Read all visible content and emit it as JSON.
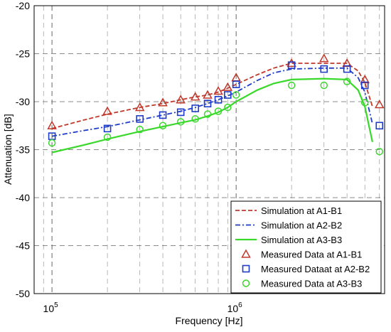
{
  "chart_data": {
    "type": "line",
    "xlabel": "Frequency [Hz]",
    "ylabel": "Attenuation [dB]",
    "x_scale": "log",
    "xlim": [
      80000,
      6400000
    ],
    "ylim": [
      -50,
      -20
    ],
    "grid": true,
    "legend_position": "bottom-right",
    "x_ticks": [
      {
        "value": 100000,
        "base": "10",
        "exp": "5"
      },
      {
        "value": 1000000,
        "base": "10",
        "exp": "6"
      }
    ],
    "y_ticks": [
      "-20",
      "-25",
      "-30",
      "-35",
      "-40",
      "-45",
      "-50"
    ],
    "series": [
      {
        "name": "Simulation at A1-B1",
        "kind": "line",
        "style": "dashed",
        "color": "#c0392b",
        "x": [
          100000,
          150000,
          200000,
          300000,
          400000,
          500000,
          600000,
          700000,
          800000,
          900000,
          1000000,
          1300000,
          1600000,
          2000000,
          3000000,
          4000000,
          4600000,
          5000000,
          5500000
        ],
        "y": [
          -32.8,
          -31.9,
          -31.3,
          -30.6,
          -30.2,
          -29.8,
          -29.5,
          -29.3,
          -29.0,
          -28.6,
          -28.2,
          -27.2,
          -26.5,
          -26.0,
          -26.0,
          -26.0,
          -26.8,
          -28.0,
          -30.5
        ]
      },
      {
        "name": "Simulation at A2-B2",
        "kind": "line",
        "style": "dashdot",
        "color": "#1f3cc8",
        "x": [
          100000,
          150000,
          200000,
          300000,
          400000,
          500000,
          600000,
          700000,
          800000,
          900000,
          1000000,
          1300000,
          1600000,
          2000000,
          3000000,
          4000000,
          4600000,
          5000000,
          5500000
        ],
        "y": [
          -33.6,
          -33.0,
          -32.6,
          -31.9,
          -31.4,
          -31.0,
          -30.6,
          -30.2,
          -29.8,
          -29.4,
          -29.0,
          -27.8,
          -27.0,
          -26.6,
          -26.5,
          -26.5,
          -27.5,
          -29.0,
          -32.3
        ]
      },
      {
        "name": "Simulation at A3-B3",
        "kind": "line",
        "style": "solid",
        "color": "#39d82b",
        "x": [
          100000,
          150000,
          200000,
          300000,
          400000,
          500000,
          600000,
          700000,
          800000,
          900000,
          1000000,
          1300000,
          1600000,
          2000000,
          3000000,
          4000000,
          4600000,
          5000000,
          5500000
        ],
        "y": [
          -35.3,
          -34.5,
          -33.9,
          -33.1,
          -32.6,
          -32.2,
          -31.9,
          -31.5,
          -31.1,
          -30.6,
          -30.0,
          -28.8,
          -28.1,
          -27.7,
          -27.6,
          -27.7,
          -28.8,
          -30.5,
          -34.2
        ]
      },
      {
        "name": "Measured Data at A1-B1",
        "kind": "marker",
        "marker": "triangle",
        "color": "#c0392b",
        "x": [
          100000,
          200000,
          300000,
          400000,
          500000,
          600000,
          700000,
          800000,
          900000,
          1000000,
          2000000,
          3000000,
          4000000,
          5000000,
          6000000
        ],
        "y": [
          -32.5,
          -31.0,
          -30.6,
          -30.1,
          -29.8,
          -29.5,
          -29.3,
          -28.9,
          -28.5,
          -27.5,
          -26.0,
          -25.5,
          -26.0,
          -27.7,
          -30.3
        ]
      },
      {
        "name": "Measured Dataat at A2-B2",
        "kind": "marker",
        "marker": "square",
        "color": "#1f3cc8",
        "x": [
          100000,
          200000,
          300000,
          400000,
          500000,
          600000,
          700000,
          800000,
          900000,
          1000000,
          2000000,
          3000000,
          4000000,
          5000000,
          6000000
        ],
        "y": [
          -33.6,
          -32.8,
          -31.8,
          -31.4,
          -31.1,
          -30.7,
          -30.2,
          -29.8,
          -29.3,
          -28.2,
          -26.2,
          -26.6,
          -26.6,
          -28.3,
          -32.5
        ]
      },
      {
        "name": "Measured Data at A3-B3",
        "kind": "marker",
        "marker": "circle",
        "color": "#39d82b",
        "x": [
          100000,
          200000,
          300000,
          400000,
          500000,
          600000,
          700000,
          800000,
          900000,
          1000000,
          2000000,
          3000000,
          4000000,
          5000000,
          6000000
        ],
        "y": [
          -34.3,
          -33.7,
          -32.9,
          -32.5,
          -32.1,
          -31.8,
          -31.3,
          -31.0,
          -30.6,
          -29.3,
          -28.3,
          -28.3,
          -27.9,
          -30.1,
          -35.2
        ]
      }
    ]
  }
}
